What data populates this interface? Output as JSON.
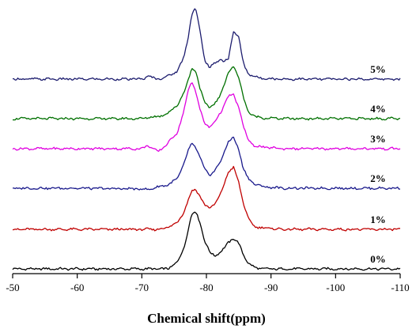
{
  "chart_data": {
    "type": "line",
    "title": "",
    "xlabel": "Chemical shift(ppm)",
    "ylabel": "",
    "xlim": [
      -50,
      -110
    ],
    "xticks": [
      -50,
      -60,
      -70,
      -80,
      -90,
      -100,
      -110
    ],
    "x_tick_labels": [
      "-50",
      "-60",
      "-70",
      "-80",
      "-90",
      "-100",
      "-110"
    ],
    "grid": false,
    "legend": "none",
    "x": [
      -50,
      -60,
      -70,
      -71.0,
      -72.5,
      -74.0,
      -75.5,
      -76.5,
      -77.2,
      -77.7,
      -78.3,
      -79.0,
      -79.7,
      -80.5,
      -81.3,
      -82.1,
      -82.7,
      -83.4,
      -84.2,
      -85.0,
      -85.7,
      -86.5,
      -87.5,
      -89.0,
      -92.0,
      -100,
      -110
    ],
    "series": [
      {
        "name": "0%",
        "color": "#000000",
        "values": [
          0.0,
          0.0,
          0.0,
          0.0,
          0.0,
          0.0,
          0.1,
          0.3,
          0.6,
          0.8,
          0.86,
          0.7,
          0.42,
          0.25,
          0.2,
          0.24,
          0.3,
          0.4,
          0.45,
          0.38,
          0.22,
          0.08,
          0.02,
          0.0,
          0.0,
          0.0,
          0.0
        ]
      },
      {
        "name": "1%",
        "color": "#c00000",
        "values": [
          0.0,
          0.0,
          0.0,
          0.0,
          0.0,
          0.03,
          0.1,
          0.26,
          0.44,
          0.56,
          0.6,
          0.5,
          0.36,
          0.32,
          0.38,
          0.5,
          0.66,
          0.86,
          0.92,
          0.7,
          0.4,
          0.15,
          0.04,
          0.02,
          0.0,
          0.0,
          0.0
        ]
      },
      {
        "name": "2%",
        "color": "#1a1a8c",
        "values": [
          0.0,
          0.0,
          -0.01,
          -0.02,
          0.02,
          0.05,
          0.14,
          0.36,
          0.56,
          0.66,
          0.62,
          0.46,
          0.28,
          0.2,
          0.26,
          0.38,
          0.52,
          0.7,
          0.75,
          0.58,
          0.3,
          0.14,
          0.06,
          0.02,
          0.0,
          0.0,
          0.0
        ]
      },
      {
        "name": "3%",
        "color": "#e000e0",
        "values": [
          0.0,
          0.0,
          0.0,
          0.05,
          -0.05,
          0.08,
          0.24,
          0.56,
          0.86,
          1.0,
          0.88,
          0.58,
          0.38,
          0.32,
          0.4,
          0.52,
          0.64,
          0.78,
          0.8,
          0.62,
          0.34,
          0.12,
          0.04,
          0.02,
          0.0,
          0.0,
          0.0
        ]
      },
      {
        "name": "4%",
        "color": "#007000",
        "values": [
          0.0,
          0.0,
          0.0,
          0.02,
          0.03,
          0.08,
          0.2,
          0.38,
          0.58,
          0.75,
          0.72,
          0.45,
          0.25,
          0.16,
          0.22,
          0.34,
          0.5,
          0.68,
          0.78,
          0.62,
          0.32,
          0.1,
          0.03,
          0.01,
          0.0,
          0.0,
          0.0
        ]
      },
      {
        "name": "5%",
        "color": "#1c1c6e",
        "values": [
          0.0,
          0.0,
          0.0,
          0.04,
          0.0,
          0.04,
          0.12,
          0.32,
          0.64,
          0.96,
          1.06,
          0.72,
          0.3,
          0.16,
          0.24,
          0.3,
          0.26,
          0.3,
          0.72,
          0.62,
          0.24,
          0.08,
          0.03,
          0.01,
          0.0,
          0.0,
          0.0
        ]
      }
    ]
  }
}
